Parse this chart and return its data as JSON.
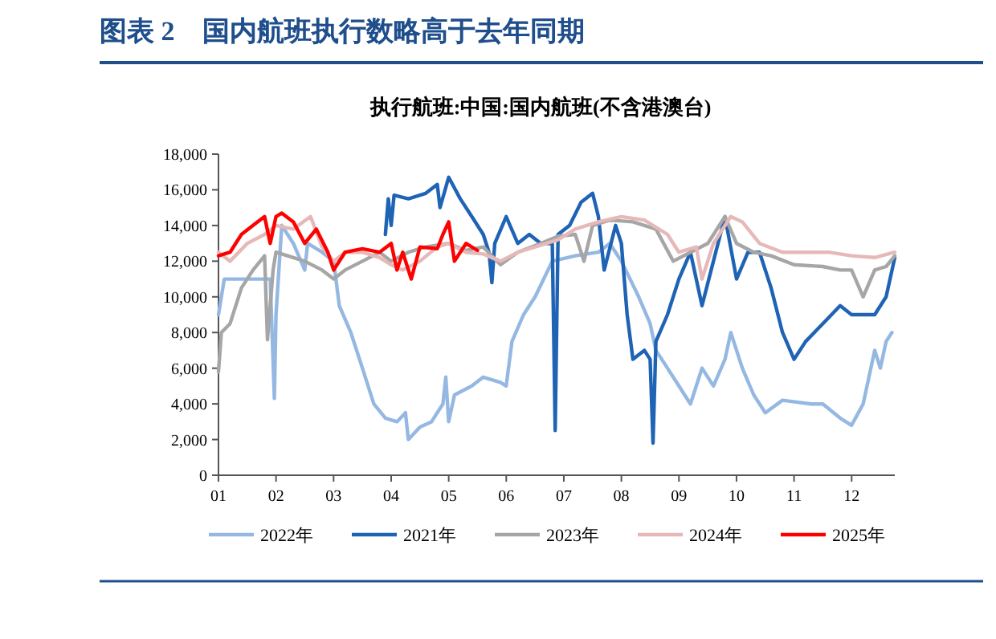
{
  "chart_data": {
    "type": "line",
    "title": "图表 2　国内航班执行数略高于去年同期",
    "subtitle": "执行航班:中国:国内航班(不含港澳台)",
    "xlim": [
      1,
      12.75
    ],
    "xticks": [
      {
        "value": 1,
        "label": "01"
      },
      {
        "value": 2,
        "label": "02"
      },
      {
        "value": 3,
        "label": "03"
      },
      {
        "value": 4,
        "label": "04"
      },
      {
        "value": 5,
        "label": "05"
      },
      {
        "value": 6,
        "label": "06"
      },
      {
        "value": 7,
        "label": "07"
      },
      {
        "value": 8,
        "label": "08"
      },
      {
        "value": 9,
        "label": "09"
      },
      {
        "value": 10,
        "label": "10"
      },
      {
        "value": 11,
        "label": "11"
      },
      {
        "value": 12,
        "label": "12"
      }
    ],
    "ylim": [
      0,
      18000
    ],
    "yticks": [
      {
        "value": 0,
        "label": "0"
      },
      {
        "value": 2000,
        "label": "2,000"
      },
      {
        "value": 4000,
        "label": "4,000"
      },
      {
        "value": 6000,
        "label": "6,000"
      },
      {
        "value": 8000,
        "label": "8,000"
      },
      {
        "value": 10000,
        "label": "10,000"
      },
      {
        "value": 12000,
        "label": "12,000"
      },
      {
        "value": 14000,
        "label": "14,000"
      },
      {
        "value": 16000,
        "label": "16,000"
      },
      {
        "value": 18000,
        "label": "18,000"
      }
    ],
    "legend": "bottom",
    "grid": false,
    "line_style": "solid",
    "marker": "none",
    "series": [
      {
        "name": "2022年",
        "color": "#95b8e3",
        "x": [
          1.0,
          1.1,
          1.5,
          1.9,
          1.97,
          2.0,
          2.1,
          2.3,
          2.5,
          2.55,
          2.8,
          3.0,
          3.1,
          3.3,
          3.5,
          3.7,
          3.9,
          4.1,
          4.25,
          4.3,
          4.5,
          4.7,
          4.9,
          4.95,
          5.0,
          5.1,
          5.4,
          5.6,
          5.9,
          6.0,
          6.1,
          6.3,
          6.5,
          6.8,
          7.2,
          7.6,
          7.8,
          8.0,
          8.3,
          8.5,
          8.6,
          8.8,
          9.0,
          9.2,
          9.4,
          9.6,
          9.8,
          9.9,
          10.1,
          10.3,
          10.5,
          10.8,
          11.3,
          11.5,
          11.8,
          12.0,
          12.2,
          12.4,
          12.5,
          12.6,
          12.7
        ],
        "values": [
          9000,
          11000,
          11000,
          11000,
          4300,
          9000,
          14000,
          13000,
          11500,
          13000,
          12500,
          12000,
          9500,
          8000,
          6000,
          4000,
          3200,
          3000,
          3500,
          2000,
          2700,
          3000,
          4000,
          5500,
          3000,
          4500,
          5000,
          5500,
          5200,
          5000,
          7500,
          9000,
          10000,
          12000,
          12300,
          12500,
          13000,
          12000,
          10000,
          8500,
          7000,
          6000,
          5000,
          4000,
          6000,
          5000,
          6500,
          8000,
          6000,
          4500,
          3500,
          4200,
          4000,
          4000,
          3200,
          2800,
          4000,
          7000,
          6000,
          7500,
          8000
        ]
      },
      {
        "name": "2021年",
        "color": "#1f63b5",
        "x": [
          3.9,
          3.95,
          4.0,
          4.05,
          4.3,
          4.6,
          4.8,
          4.85,
          5.0,
          5.2,
          5.4,
          5.6,
          5.7,
          5.75,
          5.8,
          6.0,
          6.2,
          6.4,
          6.6,
          6.8,
          6.85,
          6.9,
          7.1,
          7.3,
          7.5,
          7.6,
          7.7,
          7.9,
          8.0,
          8.1,
          8.2,
          8.4,
          8.5,
          8.55,
          8.6,
          8.8,
          9.0,
          9.2,
          9.4,
          9.6,
          9.8,
          10.0,
          10.2,
          10.4,
          10.6,
          10.8,
          11.0,
          11.2,
          11.5,
          11.8,
          12.0,
          12.2,
          12.4,
          12.6,
          12.75
        ],
        "values": [
          13500,
          15500,
          14000,
          15700,
          15500,
          15800,
          16300,
          15000,
          16700,
          15500,
          14500,
          13500,
          12500,
          10800,
          13000,
          14500,
          13000,
          13500,
          13000,
          13000,
          2500,
          13500,
          14000,
          15300,
          15800,
          14500,
          11500,
          14000,
          13000,
          9000,
          6500,
          7000,
          6500,
          1800,
          7500,
          9000,
          11000,
          12500,
          9500,
          12000,
          14500,
          11000,
          12500,
          12500,
          10500,
          8000,
          6500,
          7500,
          8500,
          9500,
          9000,
          9000,
          9000,
          10000,
          12200
        ]
      },
      {
        "name": "2023年",
        "color": "#a6a6a6",
        "x": [
          1.0,
          1.05,
          1.2,
          1.4,
          1.6,
          1.8,
          1.85,
          1.95,
          2.0,
          2.2,
          2.5,
          2.8,
          3.0,
          3.2,
          3.5,
          3.8,
          4.0,
          4.3,
          4.6,
          5.0,
          5.3,
          5.6,
          5.9,
          6.2,
          6.6,
          6.9,
          7.2,
          7.35,
          7.5,
          7.8,
          8.2,
          8.6,
          8.9,
          9.2,
          9.5,
          9.8,
          10.0,
          10.3,
          10.6,
          11.0,
          11.5,
          11.8,
          12.0,
          12.2,
          12.4,
          12.6,
          12.75
        ],
        "values": [
          5800,
          8000,
          8500,
          10500,
          11500,
          12300,
          7600,
          11500,
          12500,
          12300,
          12000,
          11500,
          11000,
          11500,
          12000,
          12500,
          12000,
          12500,
          12800,
          13000,
          12600,
          12800,
          11800,
          12500,
          13000,
          13400,
          13500,
          12000,
          14000,
          14300,
          14200,
          13800,
          12000,
          12500,
          13000,
          14500,
          13000,
          12500,
          12300,
          11800,
          11700,
          11500,
          11500,
          10000,
          11500,
          11700,
          12300
        ]
      },
      {
        "name": "2024年",
        "color": "#e6b9b8",
        "x": [
          1.0,
          1.2,
          1.5,
          1.8,
          2.0,
          2.3,
          2.6,
          2.8,
          3.0,
          3.2,
          3.5,
          3.8,
          4.0,
          4.2,
          4.5,
          4.8,
          5.0,
          5.3,
          5.6,
          5.9,
          6.2,
          6.5,
          6.9,
          7.2,
          7.6,
          8.0,
          8.4,
          8.8,
          9.0,
          9.3,
          9.4,
          9.6,
          9.9,
          10.1,
          10.4,
          10.8,
          11.2,
          11.6,
          12.0,
          12.4,
          12.75
        ],
        "values": [
          12500,
          12000,
          13000,
          13500,
          14000,
          13800,
          14500,
          12800,
          12000,
          12500,
          12500,
          12200,
          11800,
          11500,
          12000,
          12800,
          13000,
          12500,
          12400,
          12000,
          12500,
          12800,
          13200,
          13800,
          14200,
          14500,
          14300,
          13500,
          12500,
          12800,
          11000,
          13000,
          14500,
          14200,
          13000,
          12500,
          12500,
          12500,
          12300,
          12200,
          12500
        ]
      },
      {
        "name": "2025年",
        "color": "#ff0000",
        "x": [
          1.0,
          1.2,
          1.4,
          1.6,
          1.8,
          1.9,
          2.0,
          2.1,
          2.3,
          2.5,
          2.7,
          2.9,
          3.0,
          3.2,
          3.5,
          3.8,
          4.0,
          4.1,
          4.2,
          4.35,
          4.5,
          4.8,
          4.9,
          5.0,
          5.1,
          5.3,
          5.5
        ],
        "values": [
          12300,
          12500,
          13500,
          14000,
          14500,
          13000,
          14500,
          14700,
          14200,
          13000,
          13800,
          12500,
          11500,
          12500,
          12700,
          12500,
          13000,
          11500,
          12500,
          11000,
          12800,
          12700,
          13500,
          14200,
          12000,
          13000,
          12600
        ]
      }
    ]
  }
}
